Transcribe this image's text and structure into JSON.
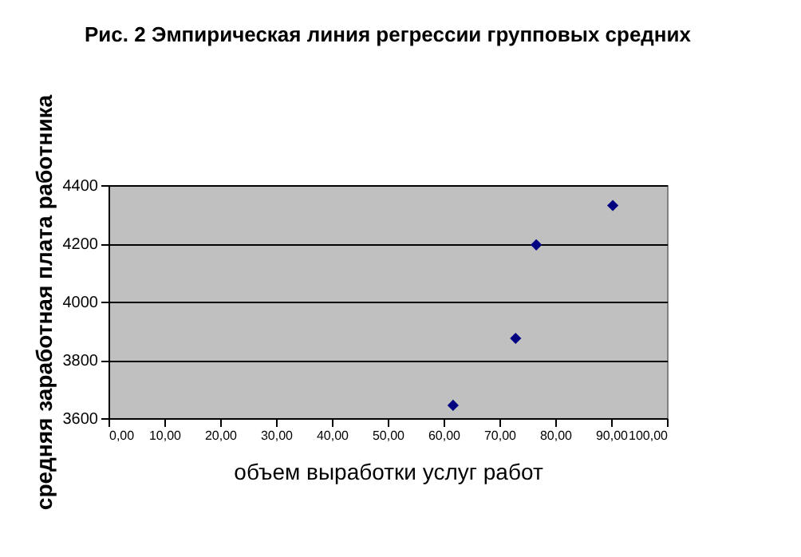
{
  "chart_data": {
    "type": "scatter",
    "title": "Рис. 2 Эмпирическая линия регрессии групповых средних",
    "xlabel": "объем выработки услуг работ",
    "ylabel": "средняя заработная плата работника",
    "x": [
      61.7,
      72.9,
      76.6,
      90.3
    ],
    "series": [
      {
        "color": "#000080",
        "values": [
          3644,
          3874,
          4195,
          4330
        ]
      }
    ],
    "xlim": [
      0,
      100
    ],
    "xticks": [
      {
        "value": 0,
        "label": "0,00"
      },
      {
        "value": 10,
        "label": "10,00"
      },
      {
        "value": 20,
        "label": "20,00"
      },
      {
        "value": 30,
        "label": "30,00"
      },
      {
        "value": 40,
        "label": "40,00"
      },
      {
        "value": 50,
        "label": "50,00"
      },
      {
        "value": 60,
        "label": "60,00"
      },
      {
        "value": 70,
        "label": "70,00"
      },
      {
        "value": 80,
        "label": "80,00"
      },
      {
        "value": 90,
        "label": "90,00"
      },
      {
        "value": 100,
        "label": "100,00"
      }
    ],
    "ylim": [
      3600,
      4400
    ],
    "yticks": [
      3600,
      3800,
      4000,
      4200,
      4400
    ],
    "grid": "y",
    "marker": "diamond"
  }
}
